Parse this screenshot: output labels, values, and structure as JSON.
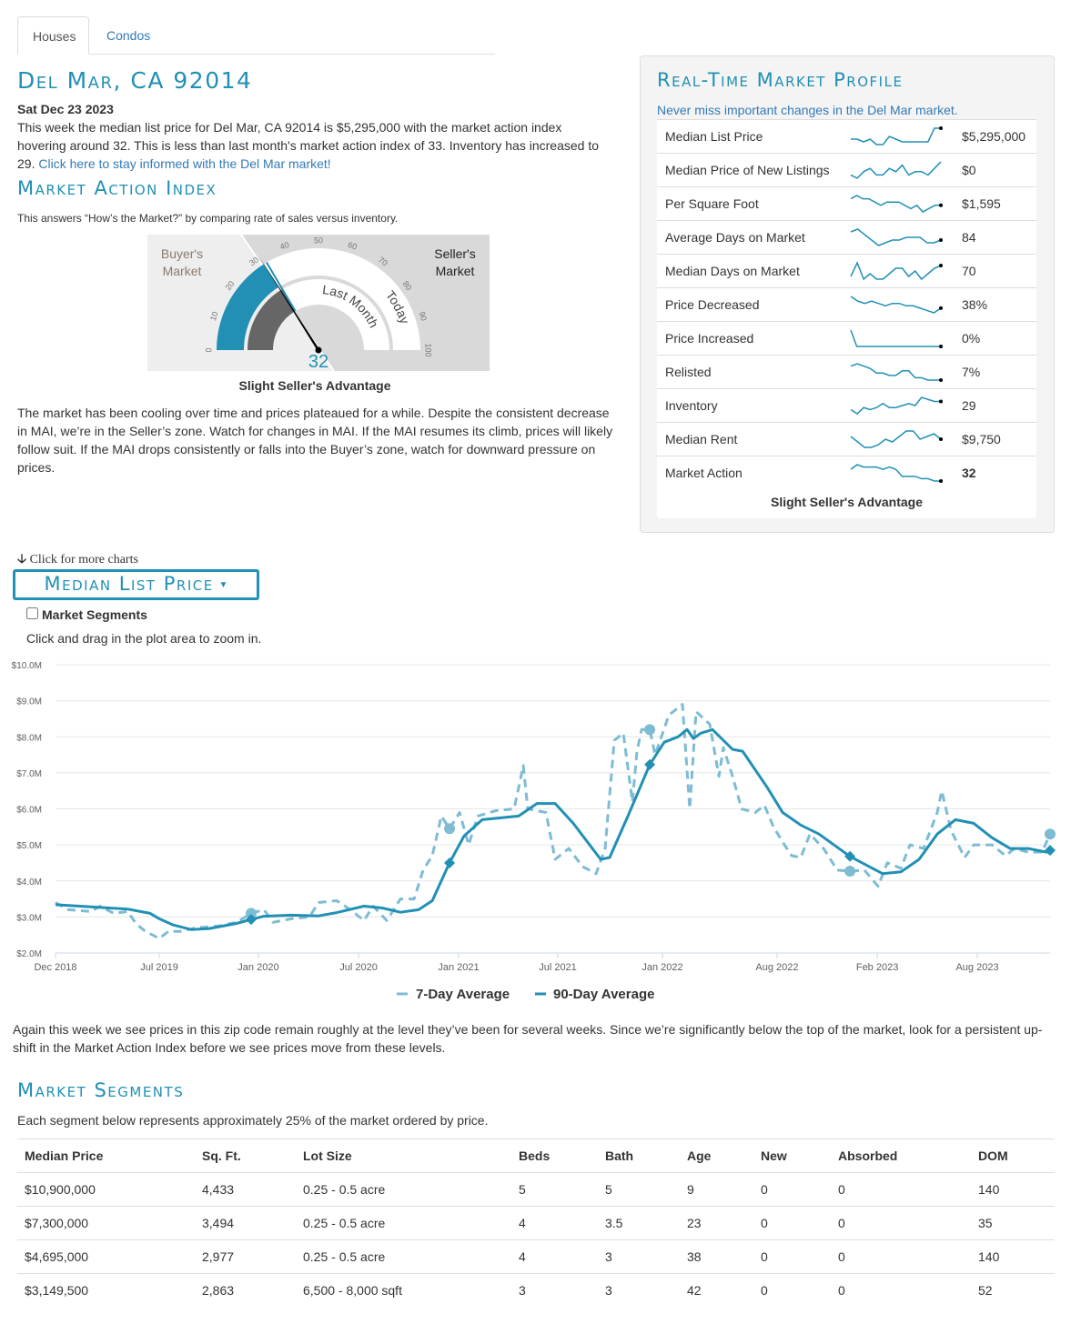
{
  "tabs": [
    {
      "label": "Houses",
      "active": true
    },
    {
      "label": "Condos",
      "active": false
    }
  ],
  "title": "Del Mar, CA 92014",
  "date": "Sat Dec 23 2023",
  "summary": {
    "text": "This week the median list price for Del Mar, CA 92014 is $5,295,000 with the market action index hovering around 32. This is less than last month's market action index of 33. Inventory has increased to 29. ",
    "link": "Click here to stay informed with the Del Mar market!"
  },
  "mai": {
    "heading": "Market Action Index",
    "subtitle": "This answers “How’s the Market?” by comparing rate of sales versus inventory.",
    "buyers_label": [
      "Buyer's",
      "Market"
    ],
    "sellers_label": [
      "Seller's",
      "Market"
    ],
    "value": 32,
    "last_month_value": 33,
    "ring_labels": {
      "inner": "Last Month",
      "outer": "Today"
    },
    "ticks": [
      "0",
      "10",
      "20",
      "30",
      "40",
      "50",
      "60",
      "70",
      "80",
      "90",
      "100"
    ],
    "verdict": "Slight Seller's Advantage",
    "description": "The market has been cooling over time and prices plateaued for a while. Despite the consistent decrease in MAI, we’re in the Seller’s zone. Watch for changes in MAI. If the MAI resumes its climb, prices will likely follow suit. If the MAI drops consistently or falls into the Buyer’s zone, watch for downward pressure on prices."
  },
  "profile": {
    "heading": "Real-Time Market Profile",
    "subtitle": "Never miss important changes in the Del Mar market.",
    "rows": [
      {
        "label": "Median List Price",
        "value": "$5,295,000",
        "trend": [
          5,
          5,
          4,
          5,
          3,
          3,
          6,
          5,
          4,
          4,
          4,
          4,
          4,
          9,
          9
        ],
        "dot": true
      },
      {
        "label": "Median Price of New Listings",
        "value": "$0",
        "trend": [
          4,
          3,
          5,
          6,
          4,
          4,
          6,
          5,
          7,
          4,
          5,
          5,
          4,
          6,
          8
        ],
        "dot": false
      },
      {
        "label": "Per Square Foot",
        "value": "$1,595",
        "trend": [
          7,
          8,
          7,
          7,
          6,
          5,
          6,
          6,
          6,
          5,
          4,
          5,
          3,
          4,
          5,
          5
        ],
        "dot": true
      },
      {
        "label": "Average Days on Market",
        "value": "84",
        "trend": [
          7,
          8,
          6,
          4,
          2,
          3,
          4,
          4,
          5,
          5,
          5,
          3,
          3,
          4
        ],
        "dot": true
      },
      {
        "label": "Median Days on Market",
        "value": "70",
        "trend": [
          3,
          8,
          2,
          4,
          2,
          2,
          4,
          6,
          6,
          3,
          5,
          2,
          4,
          6,
          7
        ],
        "dot": true
      },
      {
        "label": "Price Decreased",
        "value": "38%",
        "trend": [
          9,
          7,
          6,
          7,
          6,
          5,
          6,
          6,
          5,
          5,
          4,
          3,
          2,
          4
        ],
        "dot": true
      },
      {
        "label": "Price Increased",
        "value": "0%",
        "trend": [
          9,
          1,
          1,
          1,
          1,
          1,
          1,
          1,
          1,
          1,
          1,
          1,
          1,
          1,
          1,
          1
        ],
        "dot": true
      },
      {
        "label": "Relisted",
        "value": "7%",
        "trend": [
          8,
          9,
          8,
          7,
          5,
          5,
          4,
          4,
          6,
          6,
          3,
          3,
          2,
          2,
          2
        ],
        "dot": true
      },
      {
        "label": "Inventory",
        "value": "29",
        "trend": [
          3,
          1,
          4,
          3,
          4,
          6,
          4,
          4,
          5,
          6,
          5,
          9,
          8,
          7,
          7
        ],
        "dot": true
      },
      {
        "label": "Median Rent",
        "value": "$9,750",
        "trend": [
          6,
          4,
          2,
          2,
          3,
          5,
          4,
          6,
          8,
          8,
          5,
          6,
          7,
          5
        ],
        "dot": true
      },
      {
        "label": "Market Action",
        "value": "32",
        "trend": [
          6,
          8,
          7,
          7,
          7,
          6,
          7,
          6,
          3,
          3,
          3,
          2,
          2,
          1,
          1
        ],
        "dot": true
      }
    ],
    "verdict": "Slight Seller's Advantage"
  },
  "more_charts": "Click for more charts",
  "chart_selector": "Median List Price",
  "segments_checkbox": {
    "label": "Market Segments",
    "checked": false
  },
  "chart_hint": "Click and drag in the plot area to zoom in.",
  "chart_data": {
    "type": "line",
    "title": "Median List Price",
    "xlabel": "",
    "ylabel": "",
    "x_unit": "months since Dec 2018",
    "xlim": [
      0,
      60.55
    ],
    "ylim": [
      2.0,
      10.0
    ],
    "y_ticks": [
      {
        "v": 2,
        "label": "$2.0M"
      },
      {
        "v": 3,
        "label": "$3.0M"
      },
      {
        "v": 4,
        "label": "$4.0M"
      },
      {
        "v": 5,
        "label": "$5.0M"
      },
      {
        "v": 6,
        "label": "$6.0M"
      },
      {
        "v": 7,
        "label": "$7.0M"
      },
      {
        "v": 8,
        "label": "$8.0M"
      },
      {
        "v": 9,
        "label": "$9.0M"
      },
      {
        "v": 10,
        "label": "$10.0M"
      }
    ],
    "x_ticks": [
      {
        "v": 0,
        "label": "Dec 2018"
      },
      {
        "v": 6.32,
        "label": "Jul 2019"
      },
      {
        "v": 12.35,
        "label": "Jan 2020"
      },
      {
        "v": 18.45,
        "label": "Jul 2020"
      },
      {
        "v": 24.54,
        "label": "Jan 2021"
      },
      {
        "v": 30.58,
        "label": "Jul 2021"
      },
      {
        "v": 36.95,
        "label": "Jan 2022"
      },
      {
        "v": 43.93,
        "label": "Aug 2022"
      },
      {
        "v": 50.03,
        "label": "Feb 2023"
      },
      {
        "v": 56.12,
        "label": "Aug 2023"
      }
    ],
    "grid": true,
    "legend_position": "bottom-center",
    "markers_x": [
      11.91,
      23.99,
      36.18,
      48.37,
      60.55
    ],
    "series": [
      {
        "name": "7-Day Average",
        "color": "#7dbcd4",
        "style": "dashed",
        "points": [
          [
            0,
            3.4
          ],
          [
            0.78,
            3.2
          ],
          [
            2.16,
            3.15
          ],
          [
            2.71,
            3.3
          ],
          [
            3.55,
            3.1
          ],
          [
            4.38,
            3.15
          ],
          [
            4.93,
            2.8
          ],
          [
            5.48,
            2.6
          ],
          [
            6.32,
            2.4
          ],
          [
            6.87,
            2.6
          ],
          [
            7.7,
            2.6
          ],
          [
            8.53,
            2.7
          ],
          [
            9.92,
            2.75
          ],
          [
            11.02,
            2.85
          ],
          [
            11.91,
            3.1
          ],
          [
            12.69,
            3.2
          ],
          [
            13.24,
            2.85
          ],
          [
            14.35,
            2.95
          ],
          [
            15.46,
            3.0
          ],
          [
            16.01,
            3.4
          ],
          [
            17.12,
            3.45
          ],
          [
            17.95,
            3.2
          ],
          [
            18.78,
            2.9
          ],
          [
            19.34,
            3.3
          ],
          [
            20.17,
            2.9
          ],
          [
            21.0,
            3.5
          ],
          [
            21.83,
            3.5
          ],
          [
            22.38,
            4.3
          ],
          [
            22.94,
            4.7
          ],
          [
            23.49,
            5.8
          ],
          [
            23.99,
            5.45
          ],
          [
            24.6,
            5.9
          ],
          [
            25.15,
            5.0
          ],
          [
            25.71,
            5.8
          ],
          [
            26.81,
            5.95
          ],
          [
            27.92,
            6.0
          ],
          [
            28.48,
            7.2
          ],
          [
            28.75,
            6.0
          ],
          [
            29.86,
            5.9
          ],
          [
            30.42,
            4.6
          ],
          [
            31.25,
            4.9
          ],
          [
            32.08,
            4.4
          ],
          [
            32.91,
            4.2
          ],
          [
            33.46,
            4.9
          ],
          [
            34.02,
            7.9
          ],
          [
            34.57,
            8.1
          ],
          [
            35.12,
            6.2
          ],
          [
            35.4,
            7.6
          ],
          [
            35.68,
            8.2
          ],
          [
            36.18,
            8.2
          ],
          [
            36.51,
            7.5
          ],
          [
            37.34,
            8.6
          ],
          [
            38.17,
            8.9
          ],
          [
            38.61,
            6.0
          ],
          [
            39.0,
            8.7
          ],
          [
            39.83,
            8.35
          ],
          [
            40.39,
            6.9
          ],
          [
            40.66,
            7.7
          ],
          [
            41.22,
            6.9
          ],
          [
            41.77,
            6.0
          ],
          [
            42.6,
            5.9
          ],
          [
            43.16,
            6.1
          ],
          [
            43.71,
            5.5
          ],
          [
            44.38,
            5.0
          ],
          [
            44.82,
            4.7
          ],
          [
            45.37,
            4.65
          ],
          [
            45.93,
            5.3
          ],
          [
            46.76,
            4.9
          ],
          [
            47.59,
            4.3
          ],
          [
            48.37,
            4.27
          ],
          [
            49.25,
            4.3
          ],
          [
            50.08,
            3.85
          ],
          [
            50.64,
            4.5
          ],
          [
            51.47,
            4.35
          ],
          [
            52.02,
            5.0
          ],
          [
            52.85,
            4.9
          ],
          [
            53.68,
            5.9
          ],
          [
            53.96,
            6.5
          ],
          [
            54.52,
            5.4
          ],
          [
            55.35,
            4.65
          ],
          [
            55.9,
            5.0
          ],
          [
            57.01,
            5.0
          ],
          [
            57.84,
            4.7
          ],
          [
            58.39,
            4.9
          ],
          [
            59.22,
            4.8
          ],
          [
            60.06,
            4.8
          ],
          [
            60.55,
            5.3
          ]
        ]
      },
      {
        "name": "90-Day Average",
        "color": "#2190b4",
        "style": "solid",
        "points": [
          [
            0,
            3.34
          ],
          [
            2.16,
            3.28
          ],
          [
            4.38,
            3.22
          ],
          [
            5.76,
            3.1
          ],
          [
            6.32,
            2.95
          ],
          [
            7.15,
            2.78
          ],
          [
            8.25,
            2.65
          ],
          [
            9.36,
            2.68
          ],
          [
            11.02,
            2.82
          ],
          [
            11.91,
            2.93
          ],
          [
            12.69,
            3.02
          ],
          [
            14.35,
            3.05
          ],
          [
            16.01,
            3.03
          ],
          [
            17.12,
            3.12
          ],
          [
            18.78,
            3.3
          ],
          [
            19.89,
            3.25
          ],
          [
            21.0,
            3.13
          ],
          [
            22.11,
            3.2
          ],
          [
            22.94,
            3.45
          ],
          [
            23.99,
            4.5
          ],
          [
            24.88,
            5.25
          ],
          [
            25.98,
            5.7
          ],
          [
            28.2,
            5.8
          ],
          [
            29.31,
            6.15
          ],
          [
            30.42,
            6.15
          ],
          [
            31.52,
            5.6
          ],
          [
            33.19,
            4.6
          ],
          [
            33.74,
            4.65
          ],
          [
            34.85,
            5.8
          ],
          [
            36.18,
            7.23
          ],
          [
            37.06,
            7.85
          ],
          [
            37.9,
            8.0
          ],
          [
            38.45,
            8.2
          ],
          [
            38.84,
            7.95
          ],
          [
            39.28,
            8.1
          ],
          [
            40.0,
            8.2
          ],
          [
            40.89,
            7.8
          ],
          [
            41.22,
            7.65
          ],
          [
            41.83,
            7.6
          ],
          [
            43.32,
            6.6
          ],
          [
            44.27,
            5.9
          ],
          [
            45.37,
            5.55
          ],
          [
            46.48,
            5.3
          ],
          [
            48.37,
            4.68
          ],
          [
            49.53,
            4.4
          ],
          [
            50.36,
            4.2
          ],
          [
            51.47,
            4.25
          ],
          [
            52.58,
            4.6
          ],
          [
            53.68,
            5.3
          ],
          [
            54.79,
            5.7
          ],
          [
            55.9,
            5.6
          ],
          [
            57.01,
            5.2
          ],
          [
            58.12,
            4.9
          ],
          [
            59.22,
            4.9
          ],
          [
            60.33,
            4.8
          ],
          [
            60.55,
            4.85
          ]
        ]
      }
    ]
  },
  "chart_commentary": "Again this week we see prices in this zip code remain roughly at the level they’ve been for several weeks. Since we’re significantly below the top of the market, look for a persistent up-shift in the Market Action Index before we see prices move from these levels.",
  "segments": {
    "heading": "Market Segments",
    "subtitle": "Each segment below represents approximately 25% of the market ordered by price.",
    "columns": [
      "Median Price",
      "Sq. Ft.",
      "Lot Size",
      "Beds",
      "Bath",
      "Age",
      "New",
      "Absorbed",
      "DOM"
    ],
    "rows": [
      [
        "$10,900,000",
        "4,433",
        "0.25 - 0.5 acre",
        "5",
        "5",
        "9",
        "0",
        "0",
        "140"
      ],
      [
        "$7,300,000",
        "3,494",
        "0.25 - 0.5 acre",
        "4",
        "3.5",
        "23",
        "0",
        "0",
        "35"
      ],
      [
        "$4,695,000",
        "2,977",
        "0.25 - 0.5 acre",
        "4",
        "3",
        "38",
        "0",
        "0",
        "140"
      ],
      [
        "$3,149,500",
        "2,863",
        "6,500 - 8,000 sqft",
        "3",
        "3",
        "42",
        "0",
        "0",
        "52"
      ]
    ]
  },
  "colors": {
    "accent": "#2190b4",
    "link": "#337ab7",
    "seven_day": "#7dbcd4",
    "needle": "#000000",
    "last_month": "#666666"
  }
}
